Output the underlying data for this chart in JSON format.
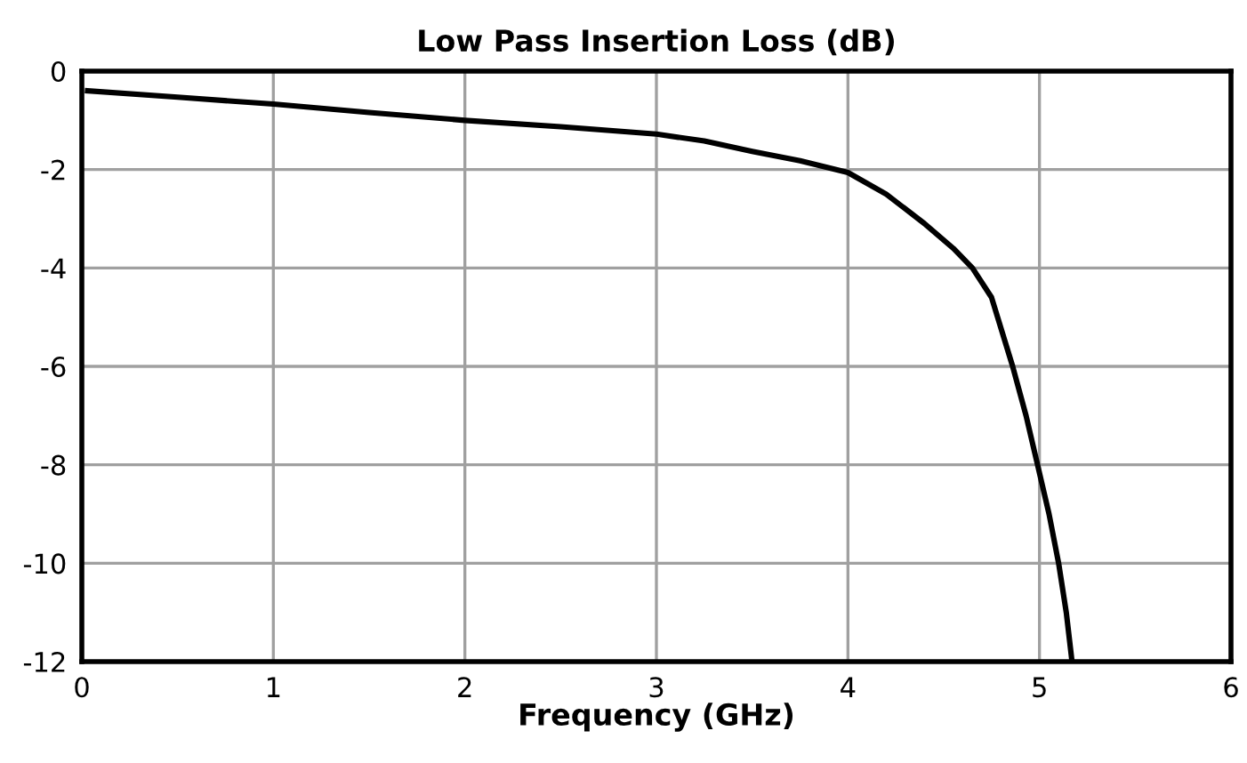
{
  "chart_data": {
    "type": "line",
    "title": "Low Pass Insertion Loss (dB)",
    "xlabel": "Frequency (GHz)",
    "series": [
      {
        "color": "#000000",
        "x": [
          0.03,
          0.5,
          1,
          1.5,
          2,
          2.5,
          3,
          3.25,
          3.5,
          3.75,
          4,
          4.2,
          4.4,
          4.55,
          4.65,
          4.75,
          4.86,
          4.93,
          4.99,
          5.05,
          5.1,
          5.14,
          5.17
        ],
        "values": [
          -0.4,
          -0.53,
          -0.67,
          -0.84,
          -1.0,
          -1.13,
          -1.28,
          -1.42,
          -1.63,
          -1.82,
          -2.06,
          -2.5,
          -3.1,
          -3.6,
          -4.0,
          -4.6,
          -6.0,
          -7.0,
          -8.0,
          -9.0,
          -10.0,
          -11.0,
          -12.0
        ]
      }
    ],
    "xlim": [
      0,
      6
    ],
    "ylim": [
      -12,
      0
    ],
    "xticks": [
      0,
      1,
      2,
      3,
      4,
      5,
      6
    ],
    "yticks": [
      -12,
      -10,
      -8,
      -6,
      -4,
      -2,
      0
    ],
    "grid": true,
    "legend": false,
    "marker": "none",
    "line_style": "solid"
  }
}
